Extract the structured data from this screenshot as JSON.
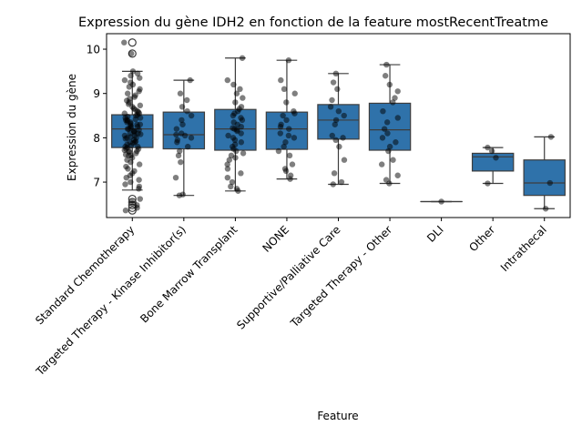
{
  "chart_data": {
    "type": "box",
    "title": "Expression du gène IDH2 en fonction de la feature mostRecentTreatme",
    "xlabel": "Feature",
    "ylabel": "Expression du gène",
    "categories": [
      "Standard Chemotherapy",
      "Targeted Therapy - Kinase Inhibitor(s)",
      "Bone Marrow Transplant",
      "NONE",
      "Supportive/Palliative Care",
      "Targeted Therapy - Other",
      "DLI",
      "Other",
      "Intrathecal"
    ],
    "yticks": [
      7,
      8,
      9,
      10
    ],
    "ylim": [
      6.2,
      10.35
    ],
    "box_color": "#2f72aa",
    "grid": false,
    "boxes": [
      {
        "q1": 7.78,
        "median": 8.2,
        "q3": 8.52,
        "whisker_low": 6.82,
        "whisker_high": 9.5,
        "outliers": [
          6.62,
          6.55,
          6.48,
          6.42,
          6.36,
          9.9,
          10.15
        ]
      },
      {
        "q1": 7.75,
        "median": 8.07,
        "q3": 8.58,
        "whisker_low": 6.7,
        "whisker_high": 9.3,
        "outliers": []
      },
      {
        "q1": 7.72,
        "median": 8.2,
        "q3": 8.64,
        "whisker_low": 6.8,
        "whisker_high": 9.8,
        "outliers": []
      },
      {
        "q1": 7.74,
        "median": 8.2,
        "q3": 8.58,
        "whisker_low": 7.07,
        "whisker_high": 9.75,
        "outliers": []
      },
      {
        "q1": 7.97,
        "median": 8.4,
        "q3": 8.75,
        "whisker_low": 6.95,
        "whisker_high": 9.45,
        "outliers": []
      },
      {
        "q1": 7.72,
        "median": 8.18,
        "q3": 8.78,
        "whisker_low": 6.97,
        "whisker_high": 9.65,
        "outliers": []
      },
      {
        "q1": 6.56,
        "median": 6.56,
        "q3": 6.56,
        "whisker_low": 6.56,
        "whisker_high": 6.56,
        "outliers": []
      },
      {
        "q1": 7.25,
        "median": 7.57,
        "q3": 7.65,
        "whisker_low": 6.97,
        "whisker_high": 7.78,
        "outliers": []
      },
      {
        "q1": 6.7,
        "median": 6.98,
        "q3": 7.5,
        "whisker_low": 6.4,
        "whisker_high": 8.02,
        "outliers": []
      }
    ],
    "points": [
      [
        6.85,
        6.9,
        6.95,
        7.0,
        7.05,
        7.1,
        7.15,
        7.2,
        7.25,
        7.3,
        7.35,
        7.4,
        7.45,
        7.5,
        7.55,
        7.6,
        7.62,
        7.65,
        7.68,
        7.7,
        7.72,
        7.75,
        7.78,
        7.8,
        7.82,
        7.85,
        7.88,
        7.9,
        7.92,
        7.95,
        7.98,
        8.0,
        8.02,
        8.05,
        8.08,
        8.1,
        8.12,
        8.15,
        8.18,
        8.2,
        8.22,
        8.25,
        8.28,
        8.3,
        8.32,
        8.35,
        8.38,
        8.4,
        8.42,
        8.45,
        8.48,
        8.5,
        8.52,
        8.55,
        8.58,
        8.6,
        8.63,
        8.66,
        8.7,
        8.73,
        8.76,
        8.8,
        8.84,
        8.88,
        8.92,
        8.96,
        9.0,
        9.05,
        9.1,
        9.15,
        9.2,
        9.25,
        9.3,
        9.35,
        9.4,
        9.45,
        9.5,
        7.6,
        7.8,
        8.0,
        8.1,
        8.2,
        8.3,
        8.4,
        7.9,
        8.05,
        8.15,
        8.25,
        8.35,
        7.7,
        7.75,
        8.45,
        8.55,
        6.62,
        6.55,
        6.48,
        6.42,
        6.36,
        9.9,
        10.15
      ],
      [
        6.7,
        6.72,
        7.1,
        7.45,
        7.6,
        7.7,
        7.8,
        7.9,
        7.95,
        8.0,
        8.05,
        8.07,
        8.1,
        8.2,
        8.3,
        8.4,
        8.5,
        8.6,
        8.7,
        8.85,
        9.0,
        9.3
      ],
      [
        6.8,
        6.85,
        6.9,
        7.0,
        7.1,
        7.2,
        7.3,
        7.4,
        7.5,
        7.6,
        7.65,
        7.7,
        7.75,
        7.8,
        7.85,
        7.9,
        7.95,
        8.0,
        8.05,
        8.1,
        8.15,
        8.2,
        8.25,
        8.3,
        8.35,
        8.4,
        8.45,
        8.5,
        8.55,
        8.6,
        8.65,
        8.7,
        8.8,
        8.9,
        9.0,
        9.1,
        9.2,
        9.3,
        9.8,
        7.55,
        8.18,
        8.22
      ],
      [
        7.07,
        7.15,
        7.25,
        7.3,
        7.4,
        7.6,
        7.7,
        7.8,
        7.9,
        8.0,
        8.05,
        8.1,
        8.2,
        8.25,
        8.3,
        8.4,
        8.5,
        8.55,
        8.6,
        8.8,
        9.0,
        9.1,
        9.3,
        9.75
      ],
      [
        6.95,
        7.0,
        7.2,
        7.5,
        7.8,
        7.95,
        8.0,
        8.05,
        8.3,
        8.4,
        8.5,
        8.6,
        8.7,
        8.85,
        9.1,
        9.25,
        9.45
      ],
      [
        6.97,
        7.05,
        7.15,
        7.4,
        7.5,
        7.7,
        7.8,
        7.9,
        8.0,
        8.1,
        8.2,
        8.35,
        8.45,
        8.6,
        8.8,
        8.9,
        9.05,
        9.2,
        9.4,
        9.65
      ],
      [
        6.56
      ],
      [
        6.97,
        7.55,
        7.7,
        7.78
      ],
      [
        6.4,
        6.98,
        8.02
      ]
    ]
  }
}
